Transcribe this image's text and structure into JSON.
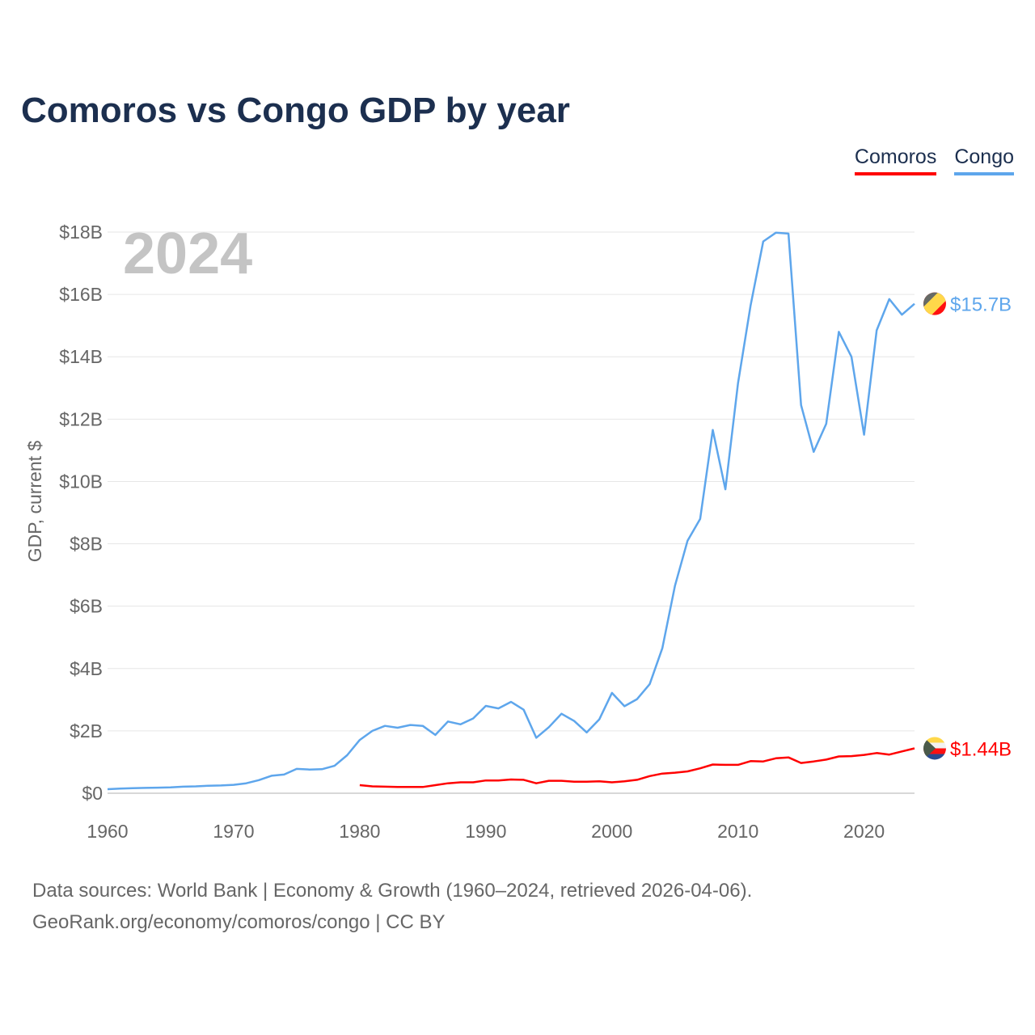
{
  "title": "Comoros vs Congo GDP by year",
  "footer": {
    "line1": "Data sources: World Bank | Economy & Growth (1960–2024, retrieved 2026-04-06).",
    "line2": "GeoRank.org/economy/comoros/congo | CC BY"
  },
  "chart_data": {
    "type": "line",
    "title": "Comoros vs Congo GDP by year",
    "xlabel": "",
    "ylabel": "GDP, current $",
    "year_label": "2024",
    "xlim": [
      1960,
      2024
    ],
    "ylim": [
      0,
      18
    ],
    "x_ticks": [
      1960,
      1970,
      1980,
      1990,
      2000,
      2010,
      2020
    ],
    "x_tick_labels": [
      "1960",
      "1970",
      "1980",
      "1990",
      "2000",
      "2010",
      "2020"
    ],
    "y_ticks": [
      0,
      2,
      4,
      6,
      8,
      10,
      12,
      14,
      16,
      18
    ],
    "y_tick_labels": [
      "$0",
      "$2B",
      "$4B",
      "$6B",
      "$8B",
      "$10B",
      "$12B",
      "$14B",
      "$16B",
      "$18B"
    ],
    "grid": true,
    "legend_position": "top-right",
    "series": [
      {
        "name": "Comoros",
        "color": "#ff0000",
        "flag": "comoros-flag",
        "end_label": "$1.44B",
        "start_year": 1980,
        "values": [
          0.26,
          0.22,
          0.21,
          0.2,
          0.2,
          0.2,
          0.26,
          0.32,
          0.35,
          0.35,
          0.41,
          0.41,
          0.44,
          0.43,
          0.32,
          0.4,
          0.4,
          0.37,
          0.37,
          0.38,
          0.35,
          0.38,
          0.43,
          0.55,
          0.63,
          0.66,
          0.7,
          0.8,
          0.92,
          0.91,
          0.91,
          1.03,
          1.02,
          1.12,
          1.15,
          0.97,
          1.02,
          1.08,
          1.18,
          1.19,
          1.23,
          1.29,
          1.24,
          1.34,
          1.44
        ]
      },
      {
        "name": "Congo",
        "color": "#5ea6ec",
        "flag": "congo-flag",
        "end_label": "$15.7B",
        "start_year": 1960,
        "values": [
          0.13,
          0.15,
          0.16,
          0.17,
          0.18,
          0.19,
          0.21,
          0.22,
          0.24,
          0.25,
          0.27,
          0.32,
          0.42,
          0.56,
          0.6,
          0.78,
          0.76,
          0.77,
          0.88,
          1.22,
          1.71,
          2.0,
          2.16,
          2.1,
          2.19,
          2.16,
          1.87,
          2.3,
          2.21,
          2.4,
          2.8,
          2.72,
          2.93,
          2.68,
          1.78,
          2.12,
          2.55,
          2.32,
          1.95,
          2.37,
          3.22,
          2.79,
          3.02,
          3.5,
          4.65,
          6.65,
          8.1,
          8.8,
          11.65,
          9.75,
          13.15,
          15.65,
          17.7,
          17.98,
          17.95,
          12.45,
          10.95,
          11.85,
          14.8,
          14.0,
          11.5,
          14.85,
          15.85,
          15.35,
          15.7
        ]
      }
    ]
  }
}
